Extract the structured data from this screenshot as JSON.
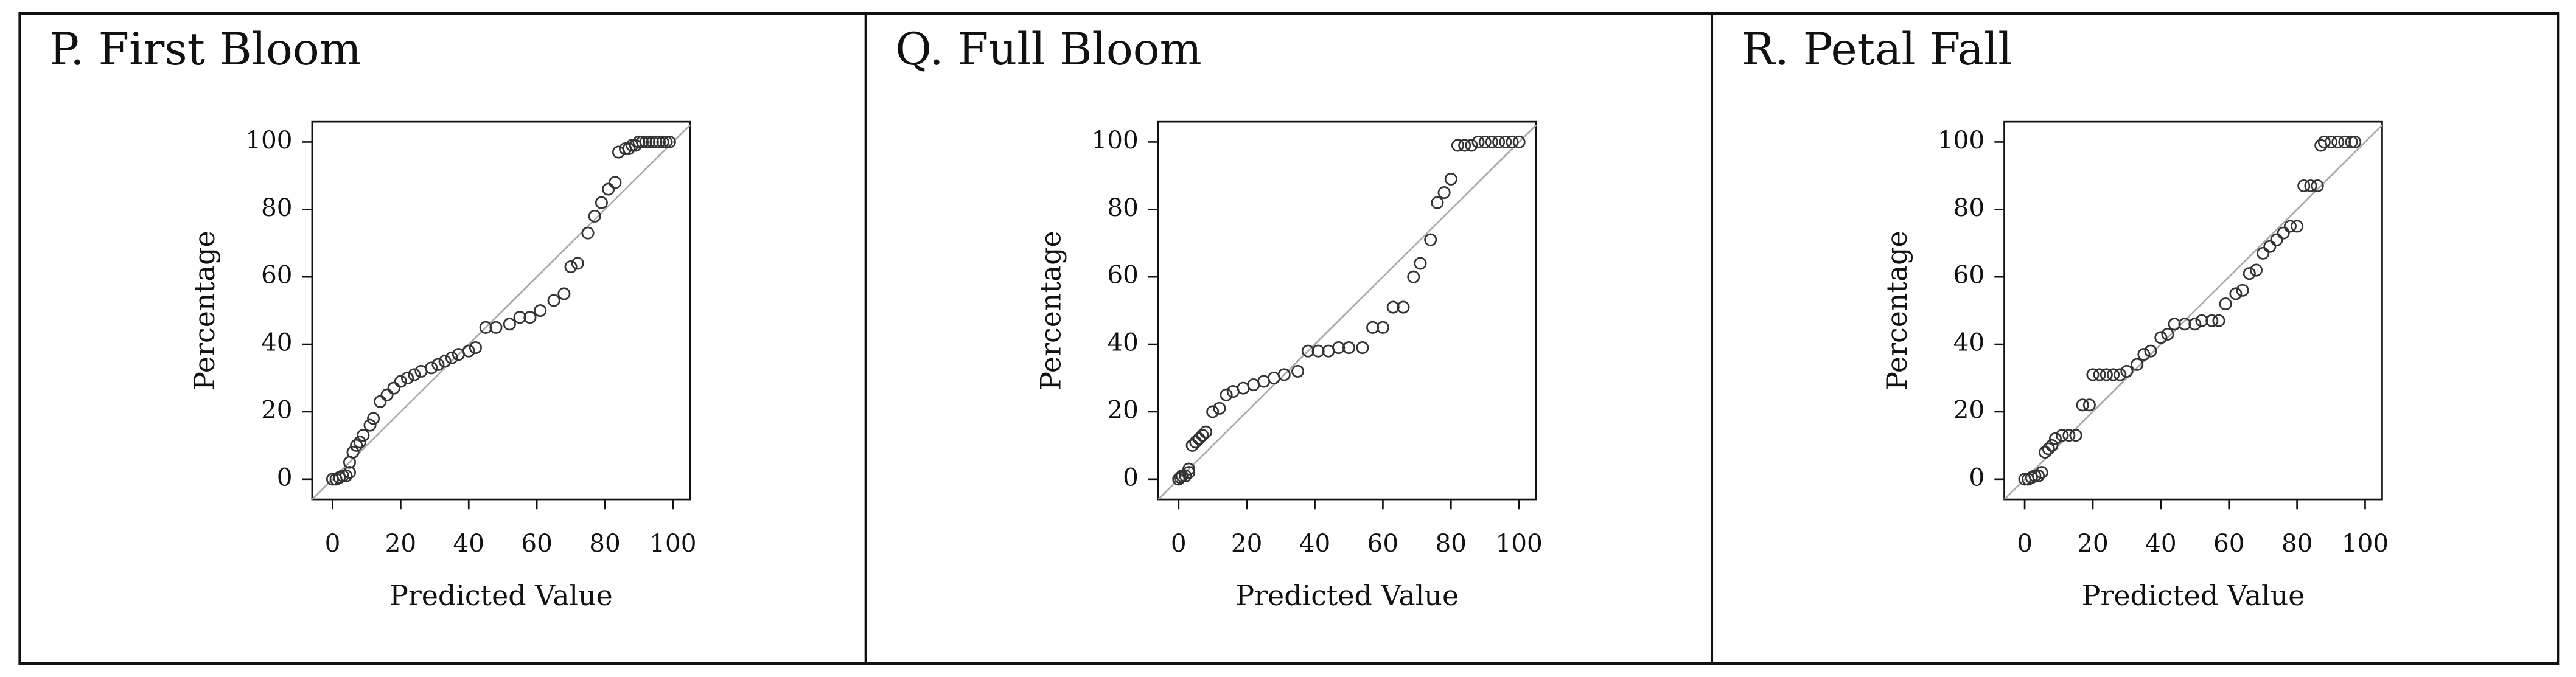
{
  "chart_data": [
    {
      "type": "scatter",
      "title": "P. First Bloom",
      "x_label": "Predicted Value",
      "y_label": "Percentage",
      "x": [
        0,
        1,
        2,
        3,
        4,
        5,
        5,
        6,
        7,
        8,
        9,
        11,
        12,
        14,
        16,
        18,
        20,
        22,
        24,
        26,
        29,
        31,
        33,
        35,
        37,
        40,
        42,
        45,
        48,
        52,
        55,
        58,
        61,
        65,
        68,
        70,
        72,
        75,
        77,
        79,
        81,
        83,
        84,
        86,
        87,
        88,
        89,
        90,
        91,
        92,
        93,
        94,
        95,
        96,
        97,
        98,
        99
      ],
      "y": [
        0,
        0,
        0.5,
        1,
        1,
        2,
        5,
        8,
        10,
        11,
        13,
        16,
        18,
        23,
        25,
        27,
        29,
        30,
        31,
        32,
        33,
        34,
        35,
        36,
        37,
        38,
        39,
        45,
        45,
        46,
        48,
        48,
        50,
        53,
        55,
        63,
        64,
        73,
        78,
        82,
        86,
        88,
        97,
        98,
        98,
        99,
        99,
        100,
        100,
        100,
        100,
        100,
        100,
        100,
        100,
        100,
        100
      ],
      "xlim": [
        -6,
        105
      ],
      "ylim": [
        -6,
        106
      ],
      "xticks": [
        0,
        20,
        40,
        60,
        80,
        100
      ],
      "yticks": [
        0,
        20,
        40,
        60,
        80,
        100
      ],
      "marker_color": "#333333",
      "diagonal": true,
      "diagonal_color": "#aaaaaa"
    },
    {
      "type": "scatter",
      "title": "Q. Full Bloom",
      "x_label": "Predicted Value",
      "y_label": "Percentage",
      "x": [
        0,
        0.5,
        1,
        2,
        3,
        3,
        4,
        5,
        6,
        7,
        8,
        10,
        12,
        14,
        16,
        19,
        22,
        25,
        28,
        31,
        35,
        38,
        41,
        44,
        47,
        50,
        54,
        57,
        60,
        63,
        66,
        69,
        71,
        74,
        76,
        78,
        80,
        82,
        84,
        86,
        88,
        90,
        92,
        94,
        96,
        98,
        100
      ],
      "y": [
        0,
        0.5,
        1,
        1,
        2,
        3,
        10,
        11,
        12,
        13,
        14,
        20,
        21,
        25,
        26,
        27,
        28,
        29,
        30,
        31,
        32,
        38,
        38,
        38,
        39,
        39,
        39,
        45,
        45,
        51,
        51,
        60,
        64,
        71,
        82,
        85,
        89,
        99,
        99,
        99,
        100,
        100,
        100,
        100,
        100,
        100,
        100
      ],
      "xlim": [
        -6,
        105
      ],
      "ylim": [
        -6,
        106
      ],
      "xticks": [
        0,
        20,
        40,
        60,
        80,
        100
      ],
      "yticks": [
        0,
        20,
        40,
        60,
        80,
        100
      ],
      "marker_color": "#333333",
      "diagonal": true,
      "diagonal_color": "#aaaaaa"
    },
    {
      "type": "scatter",
      "title": "R. Petal Fall",
      "x_label": "Predicted Value",
      "y_label": "Percentage",
      "x": [
        0,
        1,
        2,
        3,
        4,
        5,
        6,
        7,
        8,
        9,
        11,
        13,
        15,
        17,
        19,
        20,
        22,
        24,
        26,
        28,
        30,
        33,
        35,
        37,
        40,
        42,
        44,
        47,
        50,
        52,
        55,
        57,
        59,
        62,
        64,
        66,
        68,
        70,
        72,
        74,
        76,
        78,
        80,
        82,
        84,
        86,
        87,
        88,
        90,
        92,
        94,
        96,
        97
      ],
      "y": [
        0,
        0,
        0.5,
        1,
        1,
        2,
        8,
        9,
        10,
        12,
        13,
        13,
        13,
        22,
        22,
        31,
        31,
        31,
        31,
        31,
        32,
        34,
        37,
        38,
        42,
        43,
        46,
        46,
        46,
        47,
        47,
        47,
        52,
        55,
        56,
        61,
        62,
        67,
        69,
        71,
        73,
        75,
        75,
        87,
        87,
        87,
        99,
        100,
        100,
        100,
        100,
        100,
        100
      ],
      "xlim": [
        -6,
        105
      ],
      "ylim": [
        -6,
        106
      ],
      "xticks": [
        0,
        20,
        40,
        60,
        80,
        100
      ],
      "yticks": [
        0,
        20,
        40,
        60,
        80,
        100
      ],
      "marker_color": "#333333",
      "diagonal": true,
      "diagonal_color": "#aaaaaa"
    }
  ]
}
